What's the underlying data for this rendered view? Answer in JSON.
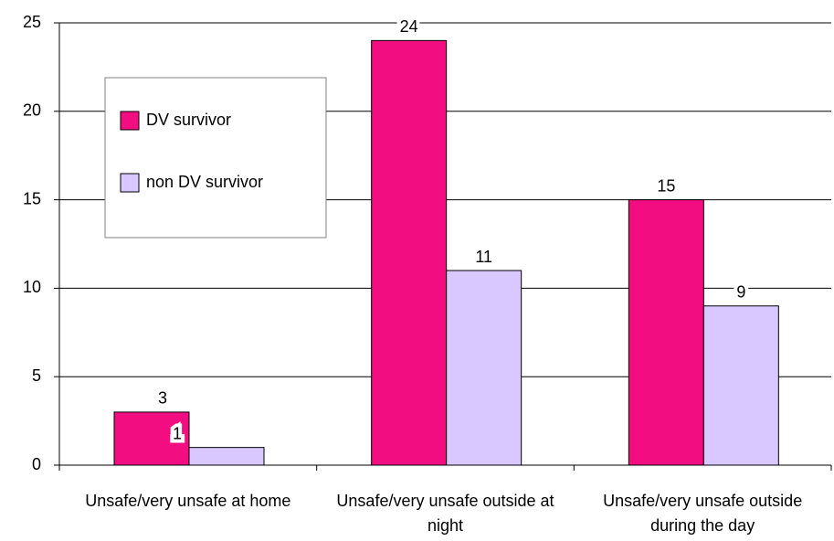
{
  "chart_data": {
    "type": "bar",
    "categories": [
      "Unsafe/very unsafe at home",
      "Unsafe/very unsafe outside at night",
      "Unsafe/very unsafe outside during the day"
    ],
    "series": [
      {
        "name": "DV survivor",
        "color": "#f20d80",
        "values": [
          3,
          24,
          15
        ]
      },
      {
        "name": "non DV survivor",
        "color": "#d8c8ff",
        "values": [
          1,
          11,
          9
        ]
      }
    ],
    "ylim": [
      0,
      25
    ],
    "yticks": [
      0,
      5,
      10,
      15,
      20,
      25
    ],
    "grid": true,
    "legend": "upper left"
  }
}
